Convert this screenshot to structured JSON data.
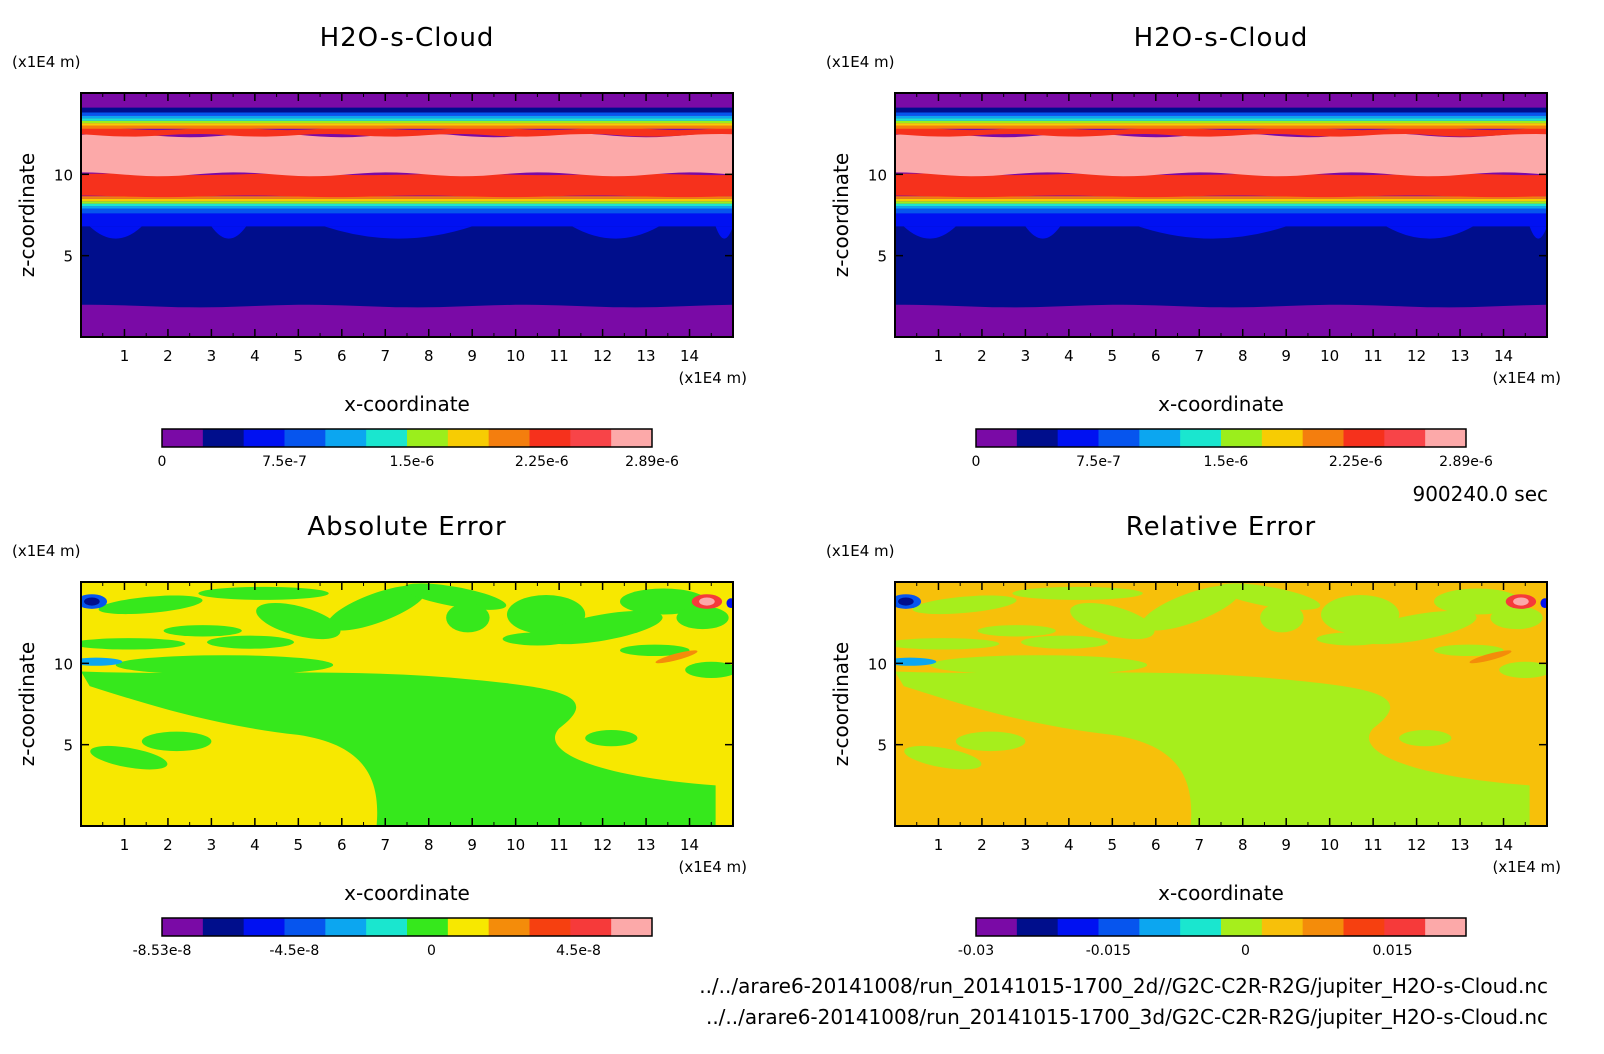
{
  "chart_data": [
    {
      "type": "heatmap",
      "id": "p1",
      "title": "H2O-s-Cloud",
      "xlabel": "x-coordinate",
      "ylabel": "z-coordinate",
      "x_unit": "(x1E4 m)",
      "y_unit": "(x1E4 m)",
      "xlim": [
        0,
        15
      ],
      "ylim": [
        0,
        15
      ],
      "xticks": [
        1,
        2,
        3,
        4,
        5,
        6,
        7,
        8,
        9,
        10,
        11,
        12,
        13,
        14
      ],
      "yticks": [
        5,
        10
      ],
      "field": "cloud",
      "colorbar": {
        "colors": [
          "#7a0aa6",
          "#000e8c",
          "#0011f2",
          "#0655ee",
          "#0ca6f0",
          "#1ae6cf",
          "#9bee1c",
          "#f7cc03",
          "#f47e0e",
          "#f6311c",
          "#f84448",
          "#fca9a9"
        ],
        "labels": [
          "0",
          "7.5e-7",
          "1.5e-6",
          "2.25e-6",
          "2.89e-6"
        ]
      }
    },
    {
      "type": "heatmap",
      "id": "p2",
      "title": "H2O-s-Cloud",
      "xlabel": "x-coordinate",
      "ylabel": "z-coordinate",
      "x_unit": "(x1E4 m)",
      "y_unit": "(x1E4 m)",
      "xlim": [
        0,
        15
      ],
      "ylim": [
        0,
        15
      ],
      "xticks": [
        1,
        2,
        3,
        4,
        5,
        6,
        7,
        8,
        9,
        10,
        11,
        12,
        13,
        14
      ],
      "yticks": [
        5,
        10
      ],
      "field": "cloud",
      "colorbar": {
        "colors": [
          "#7a0aa6",
          "#000e8c",
          "#0011f2",
          "#0655ee",
          "#0ca6f0",
          "#1ae6cf",
          "#9bee1c",
          "#f7cc03",
          "#f47e0e",
          "#f6311c",
          "#f84448",
          "#fca9a9"
        ],
        "labels": [
          "0",
          "7.5e-7",
          "1.5e-6",
          "2.25e-6",
          "2.89e-6"
        ]
      }
    },
    {
      "type": "heatmap",
      "id": "p3",
      "title": "Absolute Error",
      "xlabel": "x-coordinate",
      "ylabel": "z-coordinate",
      "x_unit": "(x1E4 m)",
      "y_unit": "(x1E4 m)",
      "xlim": [
        0,
        15
      ],
      "ylim": [
        0,
        15
      ],
      "xticks": [
        1,
        2,
        3,
        4,
        5,
        6,
        7,
        8,
        9,
        10,
        11,
        12,
        13,
        14
      ],
      "yticks": [
        5,
        10
      ],
      "field": "error",
      "background": "#f7e800",
      "patch": "#36e81c",
      "colorbar": {
        "colors": [
          "#7a0aa6",
          "#000e8c",
          "#0011f2",
          "#0655ee",
          "#0ca6f0",
          "#1ae6cf",
          "#36e81c",
          "#f7e800",
          "#f48c0a",
          "#f64010",
          "#f63a3a",
          "#fca9a9"
        ],
        "labels": [
          "-8.53e-8",
          "-4.5e-8",
          "0",
          "4.5e-8"
        ]
      }
    },
    {
      "type": "heatmap",
      "id": "p4",
      "title": "Relative Error",
      "xlabel": "x-coordinate",
      "ylabel": "z-coordinate",
      "x_unit": "(x1E4 m)",
      "y_unit": "(x1E4 m)",
      "xlim": [
        0,
        15
      ],
      "ylim": [
        0,
        15
      ],
      "xticks": [
        1,
        2,
        3,
        4,
        5,
        6,
        7,
        8,
        9,
        10,
        11,
        12,
        13,
        14
      ],
      "yticks": [
        5,
        10
      ],
      "field": "error",
      "background": "#f7c00a",
      "patch": "#a6ee1c",
      "colorbar": {
        "colors": [
          "#7a0aa6",
          "#000e8c",
          "#0011f2",
          "#0655ee",
          "#0ca6f0",
          "#1ae6cf",
          "#a6ee1c",
          "#f7c00a",
          "#f48c0a",
          "#f64010",
          "#f63a3a",
          "#fca9a9"
        ],
        "labels": [
          "-0.03",
          "-0.015",
          "0",
          "0.015"
        ]
      }
    }
  ],
  "time_label": "900240.0 sec",
  "file_paths": [
    "../../arare6-20141008/run_20141015-1700_2d//G2C-C2R-R2G/jupiter_H2O-s-Cloud.nc",
    "../../arare6-20141008/run_20141015-1700_3d/G2C-C2R-R2G/jupiter_H2O-s-Cloud.nc"
  ]
}
